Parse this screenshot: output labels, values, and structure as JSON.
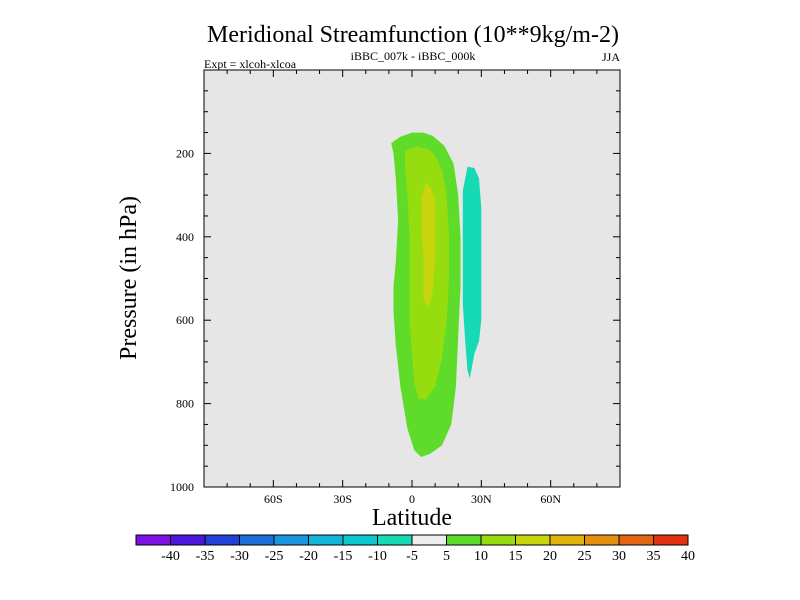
{
  "chart_data": {
    "type": "contour",
    "title": "Meridional Streamfunction (10**9kg/m-2)",
    "subtitle": "iBBC_007k - iBBC_000k",
    "left_label": "Expt = xlcoh-xlcoa",
    "right_label": "JJA",
    "xlabel": "Latitude",
    "ylabel": "Pressure (in hPa)",
    "xlim": [
      -90,
      90
    ],
    "ylim": [
      1000,
      0
    ],
    "x_ticks": [
      -60,
      -30,
      0,
      30,
      60
    ],
    "x_tick_labels": [
      "60S",
      "30S",
      "0",
      "30N",
      "60N"
    ],
    "y_ticks": [
      200,
      400,
      600,
      800,
      1000
    ],
    "y_tick_labels": [
      "200",
      "400",
      "600",
      "800",
      "1000"
    ],
    "background_color": "#e6e6e6",
    "colorbar": {
      "labels": [
        "-40",
        "-35",
        "-30",
        "-25",
        "-20",
        "-15",
        "-10",
        "-5",
        "5",
        "10",
        "15",
        "20",
        "25",
        "30",
        "35",
        "40"
      ],
      "colors": [
        "#7f10e3",
        "#4a18dc",
        "#2142d6",
        "#1c6edb",
        "#1a96e0",
        "#12b4d8",
        "#0cc8cc",
        "#16d9b6",
        "#eeeeee",
        "#5fdc2a",
        "#96dd10",
        "#c8d40c",
        "#e2b40a",
        "#e69010",
        "#e46612",
        "#e23210"
      ]
    },
    "contours": [
      {
        "level": "5 to 10",
        "color": "#5fdc2a",
        "points": [
          [
            -9,
            175
          ],
          [
            -5,
            160
          ],
          [
            0,
            150
          ],
          [
            5,
            150
          ],
          [
            9,
            158
          ],
          [
            14,
            182
          ],
          [
            18,
            225
          ],
          [
            20,
            300
          ],
          [
            21,
            400
          ],
          [
            21,
            520
          ],
          [
            20,
            640
          ],
          [
            19,
            760
          ],
          [
            17,
            850
          ],
          [
            13,
            900
          ],
          [
            8,
            920
          ],
          [
            4,
            928
          ],
          [
            1,
            912
          ],
          [
            -2,
            860
          ],
          [
            -5,
            760
          ],
          [
            -7,
            660
          ],
          [
            -8,
            580
          ],
          [
            -8,
            520
          ],
          [
            -7,
            460
          ],
          [
            -6,
            360
          ],
          [
            -7,
            260
          ],
          [
            -8,
            200
          ]
        ]
      },
      {
        "level": "10 to 15",
        "color": "#96dd10",
        "points": [
          [
            -3,
            195
          ],
          [
            2,
            183
          ],
          [
            7,
            190
          ],
          [
            10,
            205
          ],
          [
            13,
            240
          ],
          [
            15,
            300
          ],
          [
            16,
            400
          ],
          [
            16,
            500
          ],
          [
            15,
            600
          ],
          [
            13,
            690
          ],
          [
            10,
            760
          ],
          [
            6,
            790
          ],
          [
            3,
            790
          ],
          [
            1,
            750
          ],
          [
            0,
            680
          ],
          [
            -1,
            600
          ],
          [
            -1,
            500
          ],
          [
            -1,
            400
          ],
          [
            -2,
            300
          ],
          [
            -3,
            235
          ]
        ]
      },
      {
        "level": "15 to 20",
        "color": "#c8d40c",
        "points": [
          [
            6,
            270
          ],
          [
            8,
            282
          ],
          [
            10,
            310
          ],
          [
            10,
            380
          ],
          [
            10,
            460
          ],
          [
            9,
            530
          ],
          [
            7,
            570
          ],
          [
            5,
            550
          ],
          [
            5,
            460
          ],
          [
            4,
            380
          ],
          [
            4,
            310
          ]
        ]
      },
      {
        "level": "-10 to -5",
        "color": "#16d9b6",
        "points": [
          [
            24,
            232
          ],
          [
            27,
            235
          ],
          [
            29,
            260
          ],
          [
            30,
            330
          ],
          [
            30,
            420
          ],
          [
            30,
            520
          ],
          [
            30,
            600
          ],
          [
            29,
            650
          ],
          [
            27,
            680
          ],
          [
            25,
            740
          ],
          [
            24,
            720
          ],
          [
            23,
            650
          ],
          [
            22,
            560
          ],
          [
            22,
            460
          ],
          [
            22,
            360
          ],
          [
            22,
            290
          ]
        ]
      }
    ]
  }
}
